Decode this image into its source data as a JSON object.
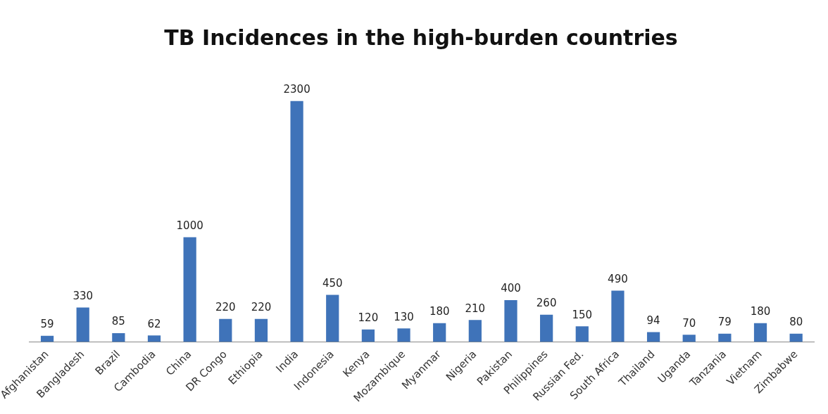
{
  "chart_data": {
    "type": "bar",
    "title": "TB Incidences in the high-burden countries",
    "categories": [
      "Afghanistan",
      "Bangladesh",
      "Brazil",
      "Cambodia",
      "China",
      "DR Congo",
      "Ethiopia",
      "India",
      "Indonesia",
      "Kenya",
      "Mozambique",
      "Myanmar",
      "Nigeria",
      "Pakistan",
      "Philippines",
      "Russian Fed.",
      "South Africa",
      "Thailand",
      "Uganda",
      "Tanzania",
      "Vietnam",
      "Zimbabwe"
    ],
    "values": [
      59,
      330,
      85,
      62,
      1000,
      220,
      220,
      2300,
      450,
      120,
      130,
      180,
      210,
      400,
      260,
      150,
      490,
      94,
      70,
      79,
      180,
      80
    ],
    "color": "#3f73b9",
    "data_labels": true,
    "grid": false,
    "legend": false,
    "tick_labels": "x"
  }
}
